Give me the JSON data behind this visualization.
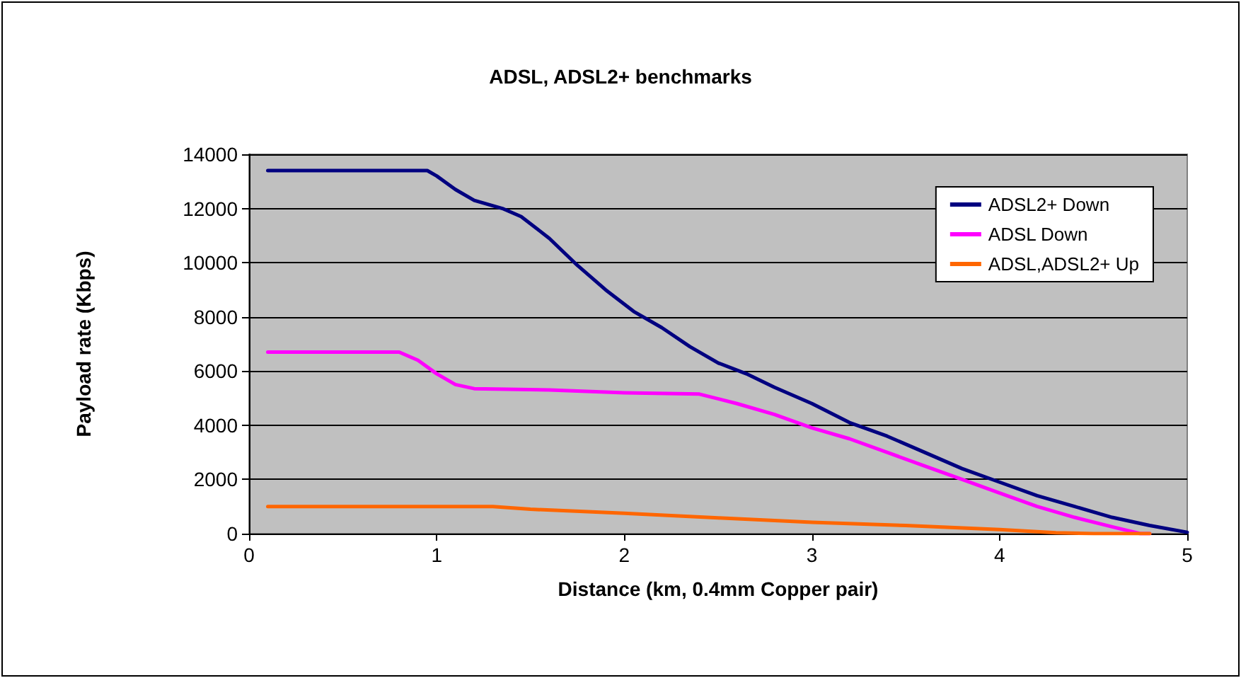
{
  "chart_data": {
    "type": "line",
    "title": "ADSL, ADSL2+ benchmarks",
    "xlabel": "Distance (km, 0.4mm Copper pair)",
    "ylabel": "Payload rate (Kbps)",
    "xlim": [
      0,
      5
    ],
    "xticks": [
      0,
      1,
      2,
      3,
      4,
      5
    ],
    "ylim": [
      0,
      14000
    ],
    "yticks": [
      0,
      2000,
      4000,
      6000,
      8000,
      10000,
      12000,
      14000
    ],
    "grid": "y",
    "legend": "top right",
    "marker": "none",
    "line_style": "solid",
    "series": [
      {
        "name": "ADSL2+ Down",
        "color": "#000080",
        "x": [
          0.1,
          0.95,
          1.0,
          1.1,
          1.2,
          1.35,
          1.45,
          1.6,
          1.75,
          1.9,
          2.05,
          2.2,
          2.35,
          2.5,
          2.65,
          2.8,
          3.0,
          3.2,
          3.4,
          3.6,
          3.8,
          4.0,
          4.2,
          4.4,
          4.6,
          4.8,
          5.0
        ],
        "values": [
          13400,
          13400,
          13200,
          12700,
          12300,
          12000,
          11700,
          10900,
          9900,
          9000,
          8200,
          7600,
          6900,
          6300,
          5900,
          5400,
          4800,
          4100,
          3600,
          3000,
          2400,
          1900,
          1400,
          1000,
          600,
          300,
          50
        ]
      },
      {
        "name": "ADSL Down",
        "color": "#ff00ff",
        "x": [
          0.1,
          0.8,
          0.9,
          1.0,
          1.1,
          1.2,
          1.6,
          2.0,
          2.4,
          2.6,
          2.8,
          3.0,
          3.2,
          3.4,
          3.6,
          3.8,
          4.0,
          4.2,
          4.4,
          4.6,
          4.75,
          4.8
        ],
        "values": [
          6700,
          6700,
          6400,
          5900,
          5500,
          5350,
          5300,
          5200,
          5150,
          4800,
          4400,
          3900,
          3500,
          3000,
          2500,
          2000,
          1500,
          1000,
          600,
          250,
          0,
          0
        ]
      },
      {
        "name": "ADSL,ADSL2+ Up",
        "color": "#ff6600",
        "x": [
          0.1,
          1.3,
          1.5,
          2.0,
          2.5,
          3.0,
          3.5,
          4.0,
          4.3,
          4.5,
          4.8
        ],
        "values": [
          1000,
          1000,
          900,
          750,
          580,
          420,
          300,
          150,
          30,
          0,
          0
        ]
      }
    ]
  }
}
